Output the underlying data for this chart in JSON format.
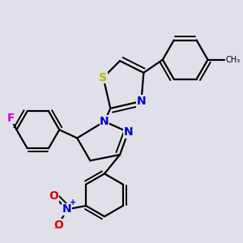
{
  "bg_color": "#e0e0e8",
  "bond_color": "#000000",
  "bond_width": 1.6,
  "atoms": {
    "S": {
      "color": "#b8b800",
      "size": 10
    },
    "N": {
      "color": "#0000cc",
      "size": 10
    },
    "O": {
      "color": "#dd0000",
      "size": 10
    },
    "F": {
      "color": "#cc00cc",
      "size": 10
    }
  }
}
